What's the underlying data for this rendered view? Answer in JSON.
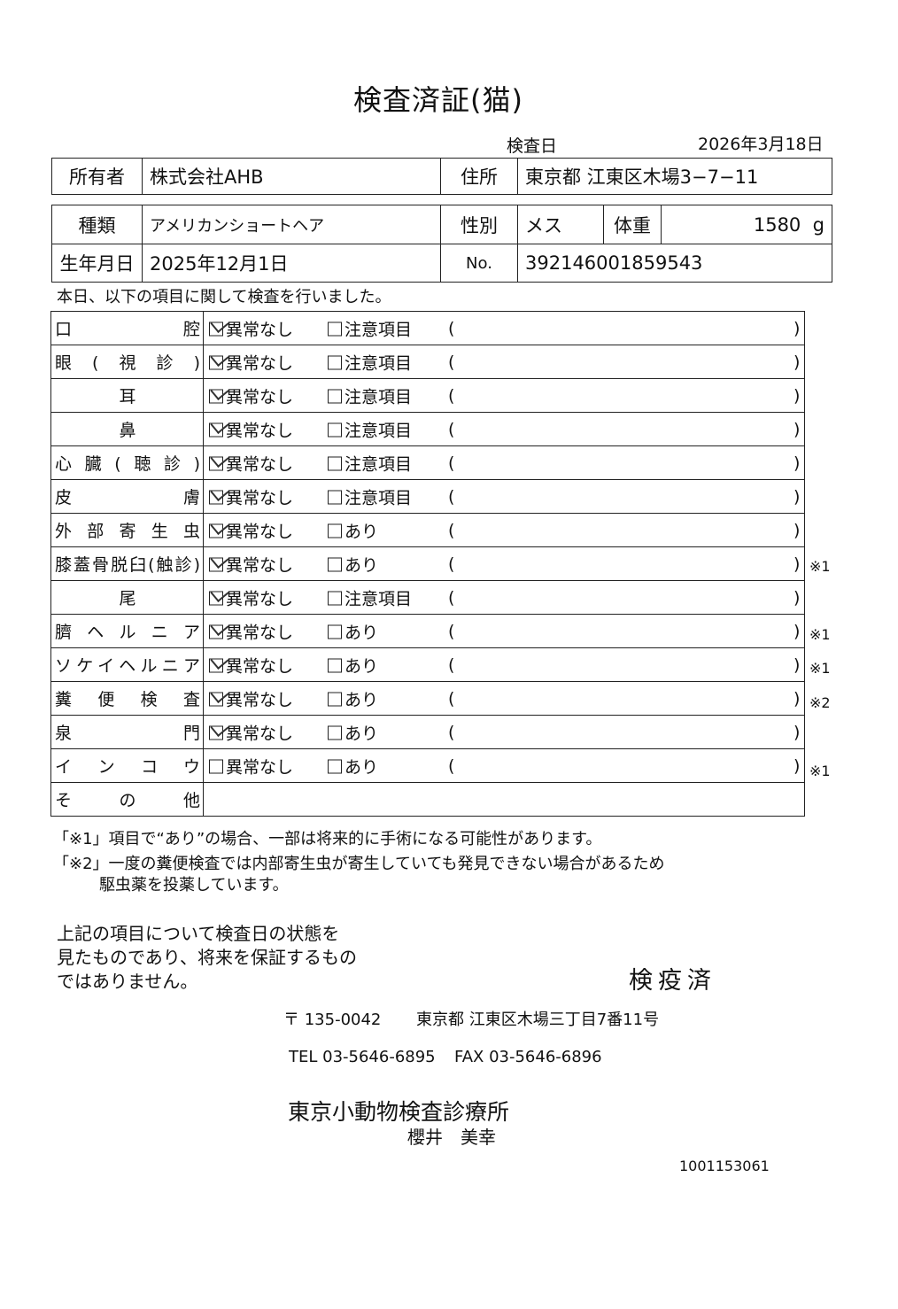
{
  "title": "検査済証(猫)",
  "inspection": {
    "label": "検査日",
    "date": "2026年3月18日"
  },
  "owner": {
    "label": "所有者",
    "value": "株式会社AHB",
    "address_label": "住所",
    "address": "東京都 江東区木場3−7−11"
  },
  "pet": {
    "breed_label": "種類",
    "breed": "アメリカンショートヘア",
    "sex_label": "性別",
    "sex": "メス",
    "weight_label": "体重",
    "weight": "1580",
    "weight_unit": "g",
    "birth_label": "生年月日",
    "birth": "2025年12月1日",
    "no_label": "No.",
    "no": "392146001859543"
  },
  "intro": "本日、以下の項目に関して検査を行いました。",
  "normal_label": "異常なし",
  "open_paren": "(",
  "close_paren": ")",
  "items": [
    {
      "label": "口腔",
      "align": "justify",
      "normal_checked": true,
      "alt": "注意項目",
      "note": ""
    },
    {
      "label": "眼(視診)",
      "align": "justify",
      "normal_checked": true,
      "alt": "注意項目",
      "note": ""
    },
    {
      "label": "耳",
      "align": "center",
      "normal_checked": true,
      "alt": "注意項目",
      "note": ""
    },
    {
      "label": "鼻",
      "align": "center",
      "normal_checked": true,
      "alt": "注意項目",
      "note": ""
    },
    {
      "label": "心臓(聴診)",
      "align": "justify",
      "normal_checked": true,
      "alt": "注意項目",
      "note": ""
    },
    {
      "label": "皮膚",
      "align": "justify",
      "normal_checked": true,
      "alt": "注意項目",
      "note": ""
    },
    {
      "label": "外部寄生虫",
      "align": "justify",
      "normal_checked": true,
      "alt": "あり",
      "note": ""
    },
    {
      "label": "膝蓋骨脱臼(触診)",
      "align": "justify",
      "normal_checked": true,
      "alt": "あり",
      "note": "※1"
    },
    {
      "label": "尾",
      "align": "center",
      "normal_checked": true,
      "alt": "注意項目",
      "note": ""
    },
    {
      "label": "臍ヘルニア",
      "align": "justify",
      "normal_checked": true,
      "alt": "あり",
      "note": "※1"
    },
    {
      "label": "ソケイヘルニア",
      "align": "justify",
      "normal_checked": true,
      "alt": "あり",
      "note": "※1"
    },
    {
      "label": "糞便検査",
      "align": "justify",
      "normal_checked": true,
      "alt": "あり",
      "note": "※2"
    },
    {
      "label": "泉門",
      "align": "justify",
      "normal_checked": true,
      "alt": "あり",
      "note": ""
    },
    {
      "label": "インコウ",
      "align": "justify",
      "normal_checked": false,
      "alt": "あり",
      "note": "※1"
    }
  ],
  "other_label": "その他",
  "footnotes": [
    "「※1」項目で“あり”の場合、一部は将来的に手術になる可能性があります。",
    "「※2」一度の糞便検査では内部寄生虫が寄生していても発見できない場合があるため",
    "駆虫薬を投薬しています。"
  ],
  "disclaimer": [
    "上記の項目について検査日の状態を",
    "見たものであり、将来を保証するもの",
    "ではありません。"
  ],
  "stamp": "検疫済",
  "clinic": {
    "postal": "〒 135-0042",
    "address": "東京都 江東区木場三丁目7番11号",
    "tel": "TEL 03-5646-6895",
    "fax": "FAX 03-5646-6896",
    "name": "東京小動物検査診療所",
    "doctor": "櫻井　美幸"
  },
  "serial": "1001153061"
}
